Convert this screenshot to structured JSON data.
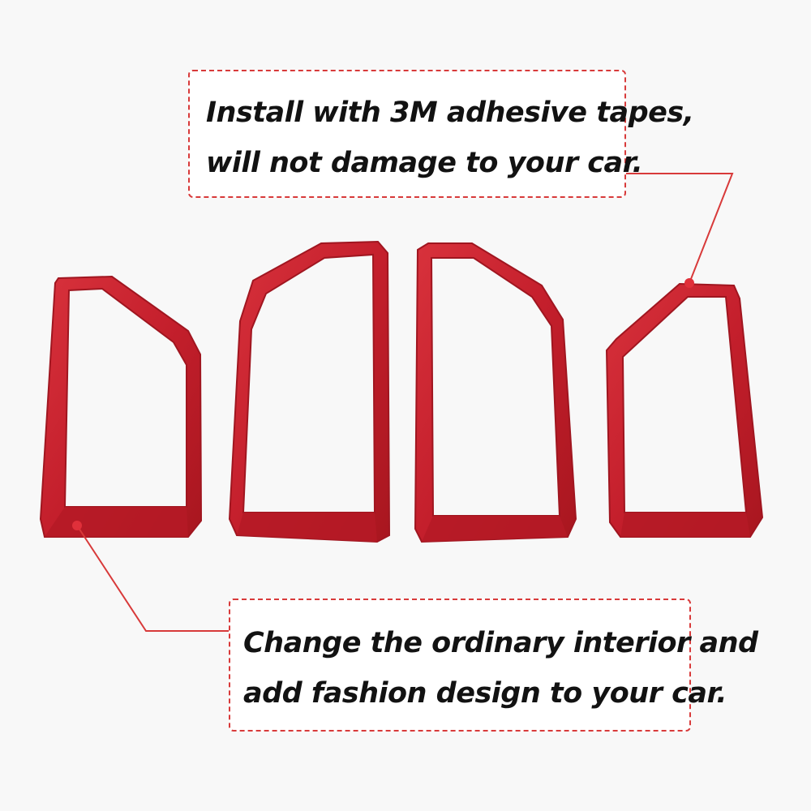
{
  "callouts": {
    "top": {
      "line1": "Install with 3M adhesive tapes,",
      "line2": "will not damage to your car."
    },
    "bottom": {
      "line1": "Change the ordinary interior and",
      "line2": "add fashion design to your car."
    }
  },
  "colors": {
    "background": "#f8f8f8",
    "frame_red": "#c8202d",
    "callout_border": "#d83a3a",
    "text": "#121212"
  }
}
